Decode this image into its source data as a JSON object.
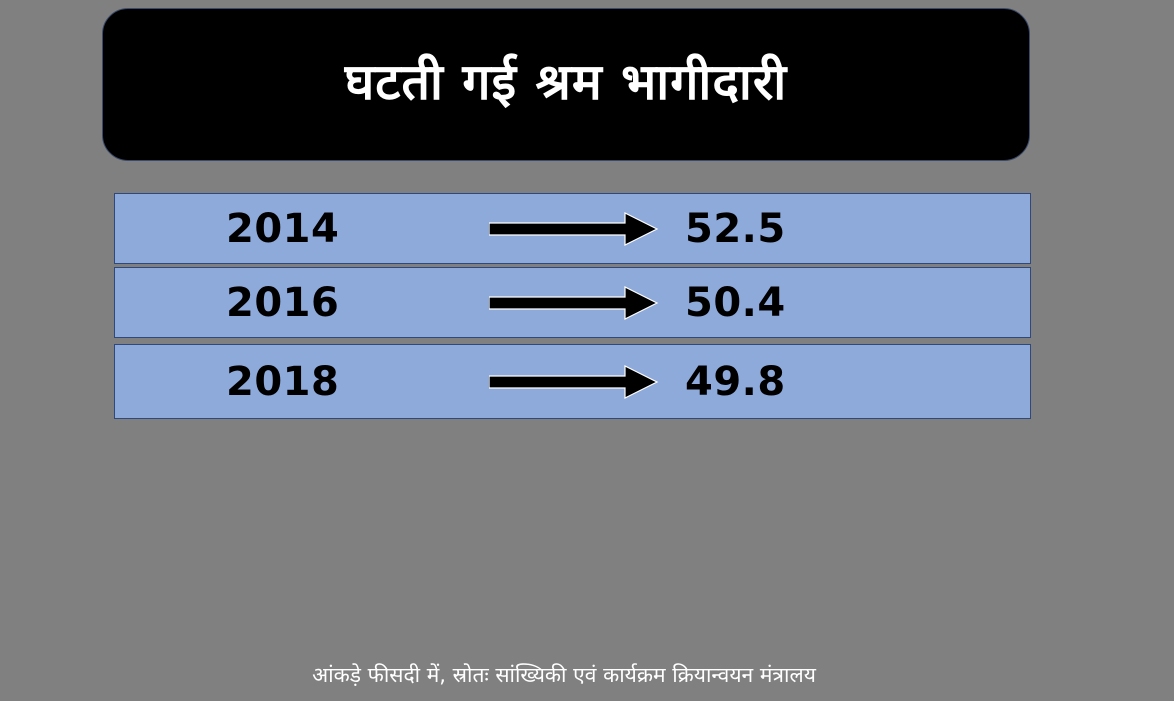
{
  "title": "घटती गई श्रम भागीदारी",
  "rows": [
    {
      "year": "2014",
      "value": "52.5"
    },
    {
      "year": "2016",
      "value": "50.4"
    },
    {
      "year": "2018",
      "value": "49.8"
    }
  ],
  "footnote": "आंकड़े फीसदी में, स्रोतः सांख्यिकी एवं कार्यक्रम क्रियान्वयन मंत्रालय",
  "icons": {
    "arrow": "right-arrow-icon"
  },
  "colors": {
    "background": "#808080",
    "title_bg": "#000000",
    "title_text": "#ffffff",
    "row_bg": "#8eaadb",
    "row_border": "#2f4a7a",
    "row_text": "#000000",
    "footnote_text": "#ffffff"
  }
}
